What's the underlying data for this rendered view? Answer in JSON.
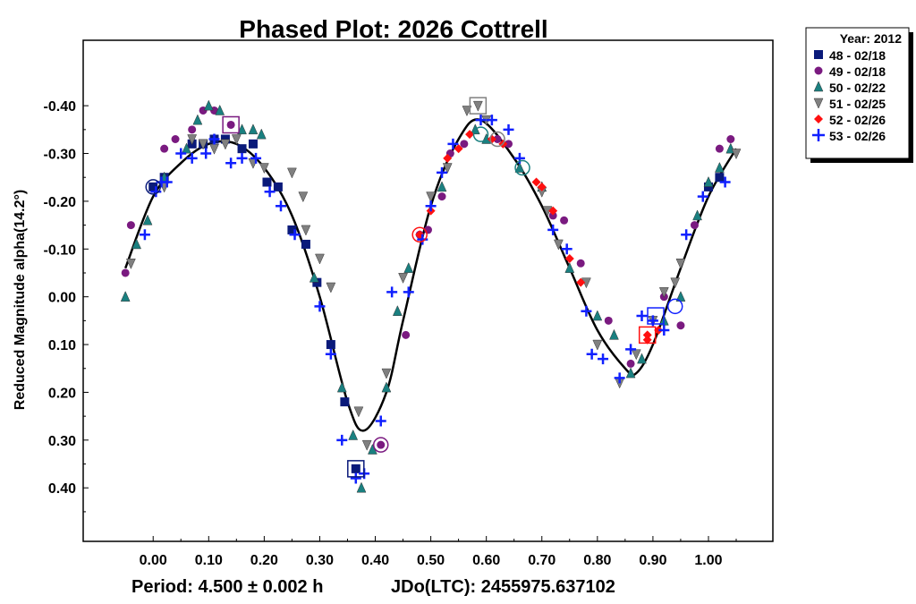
{
  "chart_data": {
    "type": "scatter",
    "title": "Phased Plot: 2026 Cottrell",
    "xlabel": "",
    "ylabel": "Reduced Magnitude alpha(14.2°)",
    "footer_period": "Period: 4.500 ± 0.002 h",
    "footer_jd": "JDo(LTC): 2455975.637102",
    "xlim": [
      -0.126,
      1.116
    ],
    "ylim": [
      -0.537,
      0.512
    ],
    "y_inverted": true,
    "xticks": [
      "0.00",
      "0.10",
      "0.20",
      "0.30",
      "0.40",
      "0.50",
      "0.60",
      "0.70",
      "0.80",
      "0.90",
      "1.00"
    ],
    "yticks": [
      "-0.40",
      "-0.30",
      "-0.20",
      "-0.10",
      "0.00",
      "0.10",
      "0.20",
      "0.30",
      "0.40"
    ],
    "legend": {
      "title": "Year: 2012",
      "placement": "outside-top-right"
    },
    "series": [
      {
        "name": "48 - 02/18",
        "marker": "square",
        "color": "#0a1a7a",
        "points": [
          [
            0.0,
            -0.23
          ],
          [
            0.02,
            -0.25
          ],
          [
            0.07,
            -0.32
          ],
          [
            0.09,
            -0.32
          ],
          [
            0.11,
            -0.33
          ],
          [
            0.13,
            -0.33
          ],
          [
            0.16,
            -0.31
          ],
          [
            0.18,
            -0.32
          ],
          [
            0.205,
            -0.24
          ],
          [
            0.225,
            -0.23
          ],
          [
            0.25,
            -0.14
          ],
          [
            0.275,
            -0.11
          ],
          [
            0.295,
            -0.03
          ],
          [
            0.32,
            0.1
          ],
          [
            0.345,
            0.22
          ],
          [
            0.365,
            0.36
          ],
          [
            1.0,
            -0.23
          ],
          [
            1.02,
            -0.25
          ]
        ]
      },
      {
        "name": "49 - 02/18",
        "marker": "circle",
        "color": "#7a1a80",
        "points": [
          [
            -0.05,
            -0.05
          ],
          [
            -0.04,
            -0.15
          ],
          [
            0.02,
            -0.31
          ],
          [
            0.04,
            -0.33
          ],
          [
            0.07,
            -0.35
          ],
          [
            0.09,
            -0.39
          ],
          [
            0.11,
            -0.39
          ],
          [
            0.14,
            -0.36
          ],
          [
            0.41,
            0.31
          ],
          [
            0.455,
            0.08
          ],
          [
            0.48,
            -0.13
          ],
          [
            0.495,
            -0.14
          ],
          [
            0.52,
            -0.21
          ],
          [
            0.535,
            -0.3
          ],
          [
            0.56,
            -0.32
          ],
          [
            0.62,
            -0.33
          ],
          [
            0.64,
            -0.32
          ],
          [
            0.72,
            -0.17
          ],
          [
            0.74,
            -0.16
          ],
          [
            0.77,
            -0.07
          ],
          [
            0.82,
            0.05
          ],
          [
            0.86,
            0.14
          ],
          [
            0.92,
            0.0
          ],
          [
            0.95,
            0.06
          ],
          [
            0.975,
            -0.15
          ],
          [
            1.02,
            -0.31
          ],
          [
            1.04,
            -0.33
          ]
        ]
      },
      {
        "name": "50 - 02/22",
        "marker": "triangle-up",
        "color": "#1a8080",
        "points": [
          [
            -0.05,
            0.0
          ],
          [
            -0.03,
            -0.11
          ],
          [
            -0.01,
            -0.16
          ],
          [
            0.02,
            -0.25
          ],
          [
            0.06,
            -0.31
          ],
          [
            0.08,
            -0.37
          ],
          [
            0.1,
            -0.4
          ],
          [
            0.12,
            -0.39
          ],
          [
            0.16,
            -0.35
          ],
          [
            0.18,
            -0.35
          ],
          [
            0.195,
            -0.34
          ],
          [
            0.29,
            -0.04
          ],
          [
            0.34,
            0.19
          ],
          [
            0.36,
            0.29
          ],
          [
            0.375,
            0.4
          ],
          [
            0.395,
            0.32
          ],
          [
            0.42,
            0.19
          ],
          [
            0.44,
            0.03
          ],
          [
            0.46,
            -0.06
          ],
          [
            0.52,
            -0.23
          ],
          [
            0.58,
            -0.35
          ],
          [
            0.6,
            -0.33
          ],
          [
            0.66,
            -0.27
          ],
          [
            0.7,
            -0.23
          ],
          [
            0.75,
            -0.06
          ],
          [
            0.8,
            0.04
          ],
          [
            0.83,
            0.08
          ],
          [
            0.86,
            0.16
          ],
          [
            0.88,
            0.13
          ],
          [
            0.92,
            0.05
          ],
          [
            0.95,
            0.0
          ],
          [
            0.98,
            -0.17
          ],
          [
            1.0,
            -0.24
          ],
          [
            1.02,
            -0.27
          ],
          [
            1.04,
            -0.31
          ]
        ]
      },
      {
        "name": "51 - 02/25",
        "marker": "triangle-down",
        "color": "#808080",
        "points": [
          [
            -0.04,
            -0.07
          ],
          [
            0.02,
            -0.23
          ],
          [
            0.07,
            -0.33
          ],
          [
            0.09,
            -0.32
          ],
          [
            0.11,
            -0.31
          ],
          [
            0.13,
            -0.32
          ],
          [
            0.15,
            -0.33
          ],
          [
            0.18,
            -0.28
          ],
          [
            0.2,
            -0.27
          ],
          [
            0.25,
            -0.26
          ],
          [
            0.27,
            -0.21
          ],
          [
            0.275,
            -0.14
          ],
          [
            0.3,
            -0.08
          ],
          [
            0.32,
            -0.02
          ],
          [
            0.37,
            0.24
          ],
          [
            0.385,
            0.31
          ],
          [
            0.42,
            0.16
          ],
          [
            0.45,
            -0.04
          ],
          [
            0.5,
            -0.21
          ],
          [
            0.53,
            -0.27
          ],
          [
            0.565,
            -0.39
          ],
          [
            0.585,
            -0.4
          ],
          [
            0.6,
            -0.37
          ],
          [
            0.7,
            -0.22
          ],
          [
            0.71,
            -0.18
          ],
          [
            0.73,
            -0.11
          ],
          [
            0.78,
            -0.03
          ],
          [
            0.8,
            0.1
          ],
          [
            0.84,
            0.18
          ],
          [
            0.87,
            0.12
          ],
          [
            0.9,
            0.05
          ],
          [
            0.92,
            -0.01
          ],
          [
            0.94,
            -0.03
          ],
          [
            0.95,
            -0.07
          ],
          [
            1.05,
            -0.3
          ]
        ]
      },
      {
        "name": "52 - 02/26",
        "marker": "diamond",
        "color": "#ff1010",
        "points": [
          [
            0.48,
            -0.13
          ],
          [
            0.5,
            -0.18
          ],
          [
            0.53,
            -0.29
          ],
          [
            0.55,
            -0.31
          ],
          [
            0.57,
            -0.34
          ],
          [
            0.61,
            -0.33
          ],
          [
            0.63,
            -0.32
          ],
          [
            0.69,
            -0.24
          ],
          [
            0.7,
            -0.23
          ],
          [
            0.72,
            -0.18
          ],
          [
            0.75,
            -0.08
          ],
          [
            0.77,
            -0.03
          ],
          [
            0.89,
            0.08
          ],
          [
            0.89,
            0.09
          ],
          [
            0.91,
            0.07
          ]
        ]
      },
      {
        "name": "53 - 02/26",
        "marker": "plus",
        "color": "#1020ff",
        "points": [
          [
            -0.015,
            -0.13
          ],
          [
            0.005,
            -0.22
          ],
          [
            0.015,
            -0.24
          ],
          [
            0.025,
            -0.24
          ],
          [
            0.05,
            -0.3
          ],
          [
            0.07,
            -0.29
          ],
          [
            0.095,
            -0.3
          ],
          [
            0.11,
            -0.33
          ],
          [
            0.14,
            -0.28
          ],
          [
            0.16,
            -0.29
          ],
          [
            0.185,
            -0.29
          ],
          [
            0.21,
            -0.22
          ],
          [
            0.23,
            -0.19
          ],
          [
            0.255,
            -0.13
          ],
          [
            0.3,
            0.02
          ],
          [
            0.32,
            0.12
          ],
          [
            0.34,
            0.3
          ],
          [
            0.365,
            0.38
          ],
          [
            0.38,
            0.37
          ],
          [
            0.41,
            0.26
          ],
          [
            0.43,
            -0.01
          ],
          [
            0.46,
            -0.01
          ],
          [
            0.485,
            -0.12
          ],
          [
            0.5,
            -0.19
          ],
          [
            0.52,
            -0.26
          ],
          [
            0.54,
            -0.32
          ],
          [
            0.59,
            -0.37
          ],
          [
            0.61,
            -0.37
          ],
          [
            0.64,
            -0.35
          ],
          [
            0.66,
            -0.29
          ],
          [
            0.72,
            -0.14
          ],
          [
            0.745,
            -0.1
          ],
          [
            0.78,
            0.03
          ],
          [
            0.79,
            0.12
          ],
          [
            0.81,
            0.13
          ],
          [
            0.84,
            0.17
          ],
          [
            0.86,
            0.11
          ],
          [
            0.88,
            0.04
          ],
          [
            0.9,
            0.05
          ],
          [
            0.92,
            0.07
          ],
          [
            0.96,
            -0.13
          ],
          [
            0.99,
            -0.21
          ],
          [
            1.03,
            -0.24
          ]
        ]
      }
    ],
    "highlights": [
      {
        "shape": "square",
        "color": "#0a1a7a",
        "x": 0.365,
        "y": 0.36
      },
      {
        "shape": "square",
        "color": "#7a1a80",
        "x": 0.14,
        "y": -0.36
      },
      {
        "shape": "circle",
        "color": "#7a1a80",
        "x": 0.41,
        "y": 0.31
      },
      {
        "shape": "circle",
        "color": "#0a1a7a",
        "x": 0.0,
        "y": -0.23
      },
      {
        "shape": "circle",
        "color": "#ff1010",
        "x": 0.48,
        "y": -0.13
      },
      {
        "shape": "square",
        "color": "#808080",
        "x": 0.585,
        "y": -0.4
      },
      {
        "shape": "circle",
        "color": "#1a8080",
        "x": 0.59,
        "y": -0.34
      },
      {
        "shape": "circle",
        "color": "#808080",
        "x": 0.62,
        "y": -0.33
      },
      {
        "shape": "circle",
        "color": "#1a8080",
        "x": 0.665,
        "y": -0.27
      },
      {
        "shape": "square",
        "color": "#ff1010",
        "x": 0.89,
        "y": 0.08
      },
      {
        "shape": "square",
        "color": "#1020ff",
        "x": 0.905,
        "y": 0.04
      },
      {
        "shape": "circle",
        "color": "#1020ff",
        "x": 0.94,
        "y": 0.02
      }
    ],
    "fit_curve": [
      [
        -0.05,
        -0.06
      ],
      [
        0.0,
        -0.21
      ],
      [
        0.05,
        -0.28
      ],
      [
        0.1,
        -0.32
      ],
      [
        0.15,
        -0.32
      ],
      [
        0.2,
        -0.27
      ],
      [
        0.25,
        -0.17
      ],
      [
        0.3,
        0.0
      ],
      [
        0.35,
        0.22
      ],
      [
        0.38,
        0.28
      ],
      [
        0.42,
        0.2
      ],
      [
        0.45,
        0.05
      ],
      [
        0.5,
        -0.19
      ],
      [
        0.55,
        -0.33
      ],
      [
        0.59,
        -0.37
      ],
      [
        0.65,
        -0.29
      ],
      [
        0.7,
        -0.19
      ],
      [
        0.75,
        -0.06
      ],
      [
        0.8,
        0.07
      ],
      [
        0.85,
        0.15
      ],
      [
        0.87,
        0.16
      ],
      [
        0.9,
        0.1
      ],
      [
        0.95,
        -0.06
      ],
      [
        1.0,
        -0.21
      ],
      [
        1.05,
        -0.31
      ]
    ]
  }
}
